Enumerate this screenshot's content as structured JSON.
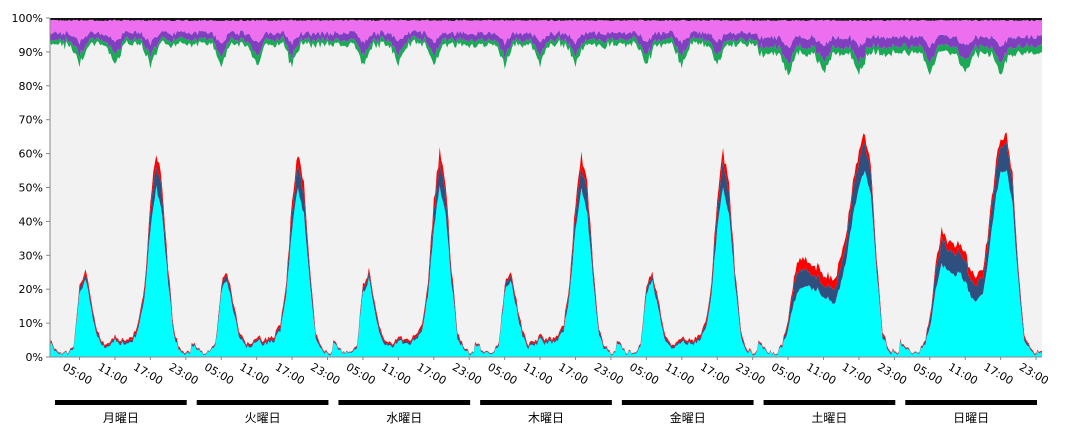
{
  "chart_data": {
    "type": "area",
    "stacked": true,
    "normalized_percent": true,
    "title": "",
    "xlabel": "",
    "ylabel": "",
    "ylim": [
      0,
      100
    ],
    "yticks": [
      "0%",
      "10%",
      "20%",
      "30%",
      "40%",
      "50%",
      "60%",
      "70%",
      "80%",
      "90%",
      "100%"
    ],
    "xtick_labels": [
      "05:00",
      "11:00",
      "17:00",
      "23:00"
    ],
    "days": [
      "月曜日",
      "火曜日",
      "水曜日",
      "木曜日",
      "金曜日",
      "土曜日",
      "日曜日"
    ],
    "grid": false,
    "legend": "none",
    "hour_points": [
      0,
      1,
      2,
      3,
      4,
      5,
      6,
      7,
      8,
      9,
      10,
      11,
      12,
      13,
      14,
      15,
      16,
      17,
      18,
      19,
      20,
      21,
      22,
      23
    ],
    "weekday_cyan": [
      4,
      2,
      1,
      1,
      3,
      19,
      23,
      14,
      6,
      3,
      3,
      5,
      4,
      4,
      5,
      8,
      18,
      38,
      50,
      42,
      22,
      6,
      2,
      1
    ],
    "weekday_navy": [
      0.5,
      0.3,
      0.2,
      0.2,
      0.5,
      1.5,
      1.5,
      1.5,
      1,
      0.5,
      0.5,
      0.6,
      0.6,
      0.6,
      0.7,
      1,
      2,
      5,
      7,
      6,
      3,
      1,
      0.4,
      0.2
    ],
    "weekday_red": [
      0.3,
      0.2,
      0.1,
      0.1,
      0.3,
      0.8,
      1,
      1,
      0.8,
      0.5,
      0.5,
      0.6,
      0.6,
      0.6,
      0.8,
      1,
      1.5,
      3,
      3.5,
      3,
      1.5,
      0.8,
      0.3,
      0.2
    ],
    "saturday_cyan": [
      4,
      2,
      1,
      1,
      3,
      8,
      16,
      21,
      21,
      20,
      20,
      18,
      17,
      16,
      22,
      30,
      42,
      50,
      55,
      48,
      25,
      6,
      2,
      1
    ],
    "saturday_navy": [
      0.5,
      0.3,
      0.2,
      0.2,
      0.5,
      2,
      5,
      6,
      5,
      4,
      4,
      4,
      4,
      4,
      5,
      6,
      7,
      8,
      8,
      6,
      3,
      1,
      0.4,
      0.2
    ],
    "saturday_red": [
      0.3,
      0.2,
      0.1,
      0.1,
      0.3,
      1,
      2,
      3,
      3,
      3,
      3,
      3,
      3,
      3,
      3,
      2.5,
      2.5,
      3,
      3,
      2.5,
      1.5,
      0.8,
      0.3,
      0.2
    ],
    "sunday_cyan": [
      4,
      2,
      1,
      1,
      3,
      8,
      20,
      27,
      26,
      24,
      25,
      22,
      18,
      16,
      19,
      30,
      45,
      55,
      55,
      45,
      22,
      5,
      2,
      1
    ],
    "sunday_navy": [
      0.5,
      0.3,
      0.2,
      0.2,
      0.5,
      2,
      6,
      7,
      6,
      6,
      6,
      6,
      5,
      5,
      5,
      6,
      7,
      8,
      8,
      6,
      3,
      1,
      0.4,
      0.2
    ],
    "sunday_red": [
      0.3,
      0.2,
      0.1,
      0.1,
      0.3,
      1,
      2,
      2.5,
      2.5,
      2.5,
      2.5,
      2.5,
      2.5,
      2.5,
      2.5,
      2.5,
      2.5,
      2.5,
      2.5,
      2,
      1.5,
      0.8,
      0.3,
      0.2
    ],
    "top_bands": {
      "black": 0.5,
      "magenta_base": 3,
      "purple_base": 1.5,
      "green_base": 1,
      "dip_hours": [
        5,
        11,
        17
      ]
    },
    "colors": {
      "cyan": "#00ffff",
      "navy": "#2f4f7f",
      "red": "#ff0000",
      "gray": "#f2f2f2",
      "green": "#1aaa55",
      "purple": "#7f3fbf",
      "magenta": "#ee6ef0",
      "black": "#111111",
      "daybar": "#000000"
    }
  }
}
